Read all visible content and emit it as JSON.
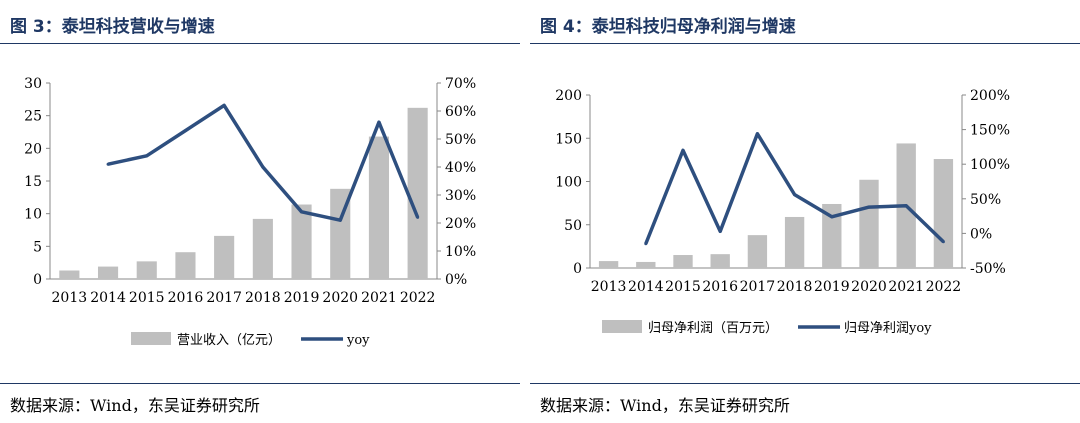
{
  "left": {
    "title": "图 3：泰坦科技营收与增速",
    "source": "数据来源：Wind，东吴证券研究所"
  },
  "right": {
    "title": "图 4：泰坦科技归母净利润与增速",
    "source": "数据来源：Wind，东吴证券研究所"
  },
  "colors": {
    "bar": "#bfbfbf",
    "line": "#2e4f7f",
    "title": "#1f3864"
  },
  "chart_data": [
    {
      "type": "bar",
      "categories": [
        "2013",
        "2014",
        "2015",
        "2016",
        "2017",
        "2018",
        "2019",
        "2020",
        "2021",
        "2022"
      ],
      "series": [
        {
          "name": "营业收入（亿元）",
          "type": "bar",
          "axis": "left",
          "values": [
            1.3,
            1.9,
            2.7,
            4.1,
            6.6,
            9.2,
            11.4,
            13.8,
            21.8,
            26.2
          ]
        },
        {
          "name": "yoy",
          "type": "line",
          "axis": "right",
          "values": [
            null,
            0.41,
            0.44,
            0.53,
            0.62,
            0.4,
            0.24,
            0.21,
            0.56,
            0.22
          ]
        }
      ],
      "ylim_left": [
        0,
        30
      ],
      "yticks_left": [
        "0",
        "5",
        "10",
        "15",
        "20",
        "25",
        "30"
      ],
      "ylim_right": [
        0,
        0.7
      ],
      "yticks_right": [
        "0%",
        "10%",
        "20%",
        "30%",
        "40%",
        "50%",
        "60%",
        "70%"
      ],
      "legend_position": "bottom",
      "grid": false
    },
    {
      "type": "bar",
      "categories": [
        "2013",
        "2014",
        "2015",
        "2016",
        "2017",
        "2018",
        "2019",
        "2020",
        "2021",
        "2022"
      ],
      "series": [
        {
          "name": "归母净利润（百万元）",
          "type": "bar",
          "axis": "left",
          "values": [
            8,
            7,
            15,
            16,
            38,
            59,
            74,
            102,
            144,
            126
          ]
        },
        {
          "name": "归母净利润yoy",
          "type": "line",
          "axis": "right",
          "values": [
            null,
            -0.15,
            1.2,
            0.03,
            1.44,
            0.56,
            0.24,
            0.38,
            0.4,
            -0.12
          ]
        }
      ],
      "ylim_left": [
        0,
        200
      ],
      "yticks_left": [
        "0",
        "50",
        "100",
        "150",
        "200"
      ],
      "ylim_right": [
        -0.5,
        2.0
      ],
      "yticks_right": [
        "-50%",
        "0%",
        "50%",
        "100%",
        "150%",
        "200%"
      ],
      "legend_position": "bottom",
      "grid": false
    }
  ]
}
